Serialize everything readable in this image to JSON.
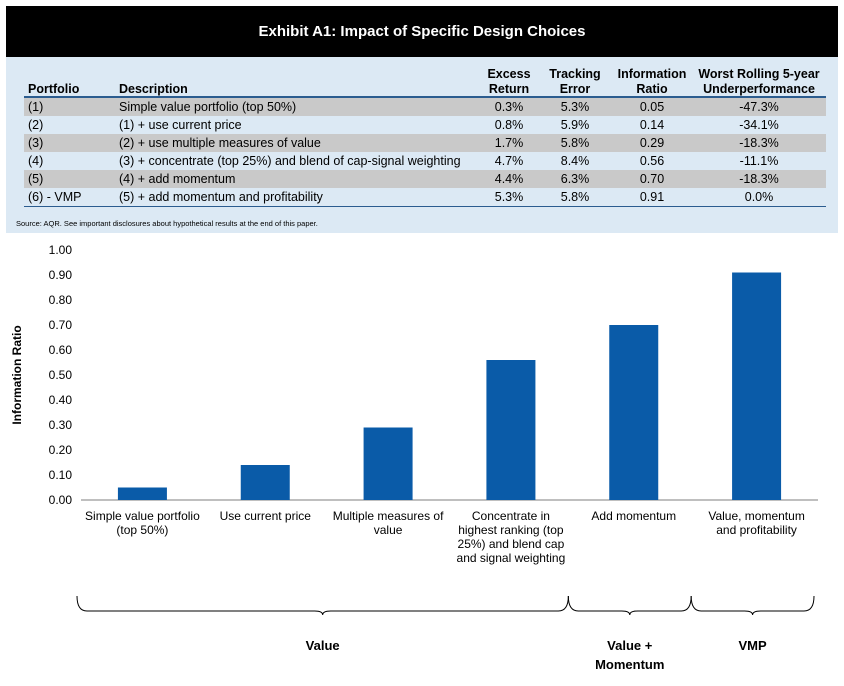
{
  "exhibit": {
    "title": "Exhibit A1: Impact of Specific Design Choices",
    "source": "Source: AQR. See important disclosures about hypothetical results at the end of this paper."
  },
  "table": {
    "headers": {
      "portfolio": "Portfolio",
      "description": "Description",
      "excess_1": "Excess",
      "excess_2": "Return",
      "tracking_1": "Tracking",
      "tracking_2": "Error",
      "info_1": "Information",
      "info_2": "Ratio",
      "worst_1": "Worst Rolling 5-year",
      "worst_2": "Underperformance"
    },
    "rows": [
      {
        "portfolio": "(1)",
        "description": "Simple value portfolio (top 50%)",
        "excess": "0.3%",
        "tracking": "5.3%",
        "info": "0.05",
        "worst": "-47.3%"
      },
      {
        "portfolio": "(2)",
        "description": "(1) + use current price",
        "excess": "0.8%",
        "tracking": "5.9%",
        "info": "0.14",
        "worst": "-34.1%"
      },
      {
        "portfolio": "(3)",
        "description": "(2) + use multiple measures of value",
        "excess": "1.7%",
        "tracking": "5.8%",
        "info": "0.29",
        "worst": "-18.3%"
      },
      {
        "portfolio": "(4)",
        "description": "(3) + concentrate (top 25%) and blend of cap-signal weighting",
        "excess": "4.7%",
        "tracking": "8.4%",
        "info": "0.56",
        "worst": "-11.1%"
      },
      {
        "portfolio": "(5)",
        "description": "(4) + add momentum",
        "excess": "4.4%",
        "tracking": "6.3%",
        "info": "0.70",
        "worst": "-18.3%"
      },
      {
        "portfolio": "(6) - VMP",
        "description": "(5) + add momentum and profitability",
        "excess": "5.3%",
        "tracking": "5.8%",
        "info": "0.91",
        "worst": "0.0%"
      }
    ]
  },
  "chart_data": {
    "type": "bar",
    "ylabel": "Information Ratio",
    "xlabel": "",
    "ylim": [
      0,
      1.0
    ],
    "yticks": [
      "0.00",
      "0.10",
      "0.20",
      "0.30",
      "0.40",
      "0.50",
      "0.60",
      "0.70",
      "0.80",
      "0.90",
      "1.00"
    ],
    "grid": false,
    "categories": [
      [
        "Simple value portfolio",
        "(top 50%)"
      ],
      [
        "Use current price"
      ],
      [
        "Multiple measures of",
        "value"
      ],
      [
        "Concentrate in",
        "highest ranking (top",
        "25%) and blend cap",
        "and signal weighting"
      ],
      [
        "Add momentum"
      ],
      [
        "Value, momentum",
        "and profitability"
      ]
    ],
    "values": [
      0.05,
      0.14,
      0.29,
      0.56,
      0.7,
      0.91
    ],
    "bar_color": "#0a5ba8",
    "groups": [
      {
        "label": [
          "Value"
        ],
        "from": 0,
        "to": 3
      },
      {
        "label": [
          "Value +",
          "Momentum"
        ],
        "from": 4,
        "to": 4
      },
      {
        "label": [
          "VMP"
        ],
        "from": 5,
        "to": 5
      }
    ]
  }
}
